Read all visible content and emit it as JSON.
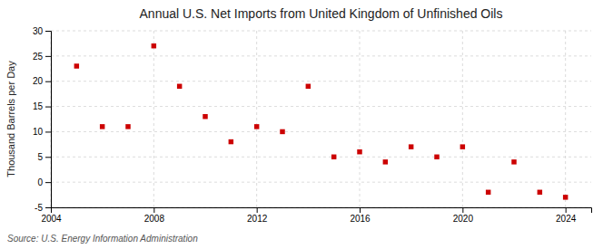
{
  "chart_data": {
    "type": "scatter",
    "title": "Annual U.S. Net Imports from United Kingdom of Unfinished Oils",
    "ylabel": "Thousand Barrels per Day",
    "source": "Source: U.S. Energy Information Administration",
    "x": [
      2005,
      2006,
      2007,
      2008,
      2009,
      2010,
      2011,
      2012,
      2013,
      2014,
      2015,
      2016,
      2017,
      2018,
      2019,
      2020,
      2021,
      2022,
      2023,
      2024
    ],
    "values": [
      23,
      11,
      11,
      27,
      19,
      13,
      8,
      11,
      10,
      19,
      5,
      6,
      4,
      7,
      5,
      7,
      -2,
      4,
      -2,
      -3
    ],
    "color": "#cc0000",
    "marker": "square",
    "xlim": [
      2004,
      2025
    ],
    "ylim": [
      -5,
      30
    ],
    "xticks": [
      2004,
      2008,
      2012,
      2016,
      2020,
      2024
    ],
    "yticks": [
      -5,
      0,
      5,
      10,
      15,
      20,
      25,
      30
    ],
    "grid": true
  }
}
